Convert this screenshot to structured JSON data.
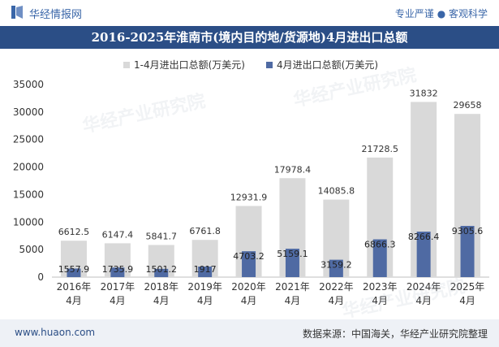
{
  "header": {
    "brand": "华经情报网",
    "tagline": "专业严谨 ● 客观科学"
  },
  "colors": {
    "title_bg": "#2b4e86",
    "bar_total": "#d9d9d9",
    "bar_month": "#4f6aa3",
    "footer_bg": "#eef1f6"
  },
  "footer": {
    "site": "www.huaon.com",
    "source": "数据来源：中国海关，华经产业研究院整理"
  },
  "watermark": "华经产业研究院",
  "chart_data": {
    "type": "bar",
    "title": "2016-2025年淮南市(境内目的地/货源地)4月进出口总额",
    "categories": [
      [
        "2016年",
        "4月"
      ],
      [
        "2017年",
        "4月"
      ],
      [
        "2018年",
        "4月"
      ],
      [
        "2019年",
        "4月"
      ],
      [
        "2020年",
        "4月"
      ],
      [
        "2021年",
        "4月"
      ],
      [
        "2022年",
        "4月"
      ],
      [
        "2023年",
        "4月"
      ],
      [
        "2024年",
        "4月"
      ],
      [
        "2025年",
        "4月"
      ]
    ],
    "series": [
      {
        "name": "1-4月进出口总额(万美元)",
        "values": [
          6612.5,
          6147.4,
          5841.7,
          6761.8,
          12931.9,
          17978.4,
          14085.8,
          21728.5,
          31832,
          29658
        ],
        "labels": [
          "6612.5",
          "6147.4",
          "5841.7",
          "6761.8",
          "12931.9",
          "17978.4",
          "14085.8",
          "21728.5",
          "31832",
          "29658"
        ]
      },
      {
        "name": "4月进出口总额(万美元)",
        "values": [
          1557.9,
          1735.9,
          1501.2,
          1917,
          4703.2,
          5159.1,
          3159.2,
          6866.3,
          8266.4,
          9305.6
        ],
        "labels": [
          "1557.9",
          "1735.9",
          "1501.2",
          "1917",
          "4703.2",
          "5159.1",
          "3159.2",
          "6866.3",
          "8266.4",
          "9305.6"
        ]
      }
    ],
    "ylim": [
      0,
      35000
    ],
    "yticks": [
      0,
      5000,
      10000,
      15000,
      20000,
      25000,
      30000,
      35000
    ],
    "ytick_labels": [
      "0",
      "5000",
      "10000",
      "15000",
      "20000",
      "25000",
      "30000",
      "35000"
    ],
    "legend_position": "top-center",
    "grid": false
  }
}
